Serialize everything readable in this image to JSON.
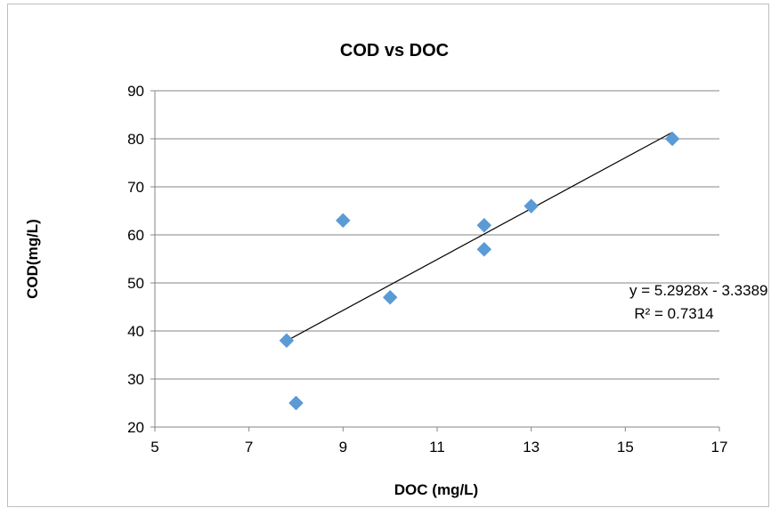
{
  "chart_data": {
    "type": "scatter",
    "title": "COD vs DOC",
    "xlabel": "DOC (mg/L)",
    "ylabel": "COD(mg/L)",
    "xlim": [
      5,
      17
    ],
    "ylim": [
      20,
      90
    ],
    "xticks": [
      "5",
      "7",
      "9",
      "11",
      "13",
      "15",
      "17"
    ],
    "yticks": [
      "20",
      "30",
      "40",
      "50",
      "60",
      "70",
      "80",
      "90"
    ],
    "grid": "horizontal",
    "legend": "none",
    "series": [
      {
        "marker": "diamond",
        "color": "#5b9bd5",
        "points": [
          {
            "x": 7.8,
            "y": 38
          },
          {
            "x": 8.0,
            "y": 25
          },
          {
            "x": 9.0,
            "y": 63
          },
          {
            "x": 10.0,
            "y": 47
          },
          {
            "x": 12.0,
            "y": 62
          },
          {
            "x": 12.0,
            "y": 57
          },
          {
            "x": 13.0,
            "y": 66
          },
          {
            "x": 16.0,
            "y": 80
          }
        ]
      }
    ],
    "trendline": {
      "type": "linear",
      "slope": 5.2928,
      "intercept": -3.3389,
      "x_range": [
        7.8,
        16.0
      ],
      "color": "#000000",
      "equation_label": "y = 5.2928x - 3.3389",
      "r2_label": "R² = 0.7314"
    }
  }
}
